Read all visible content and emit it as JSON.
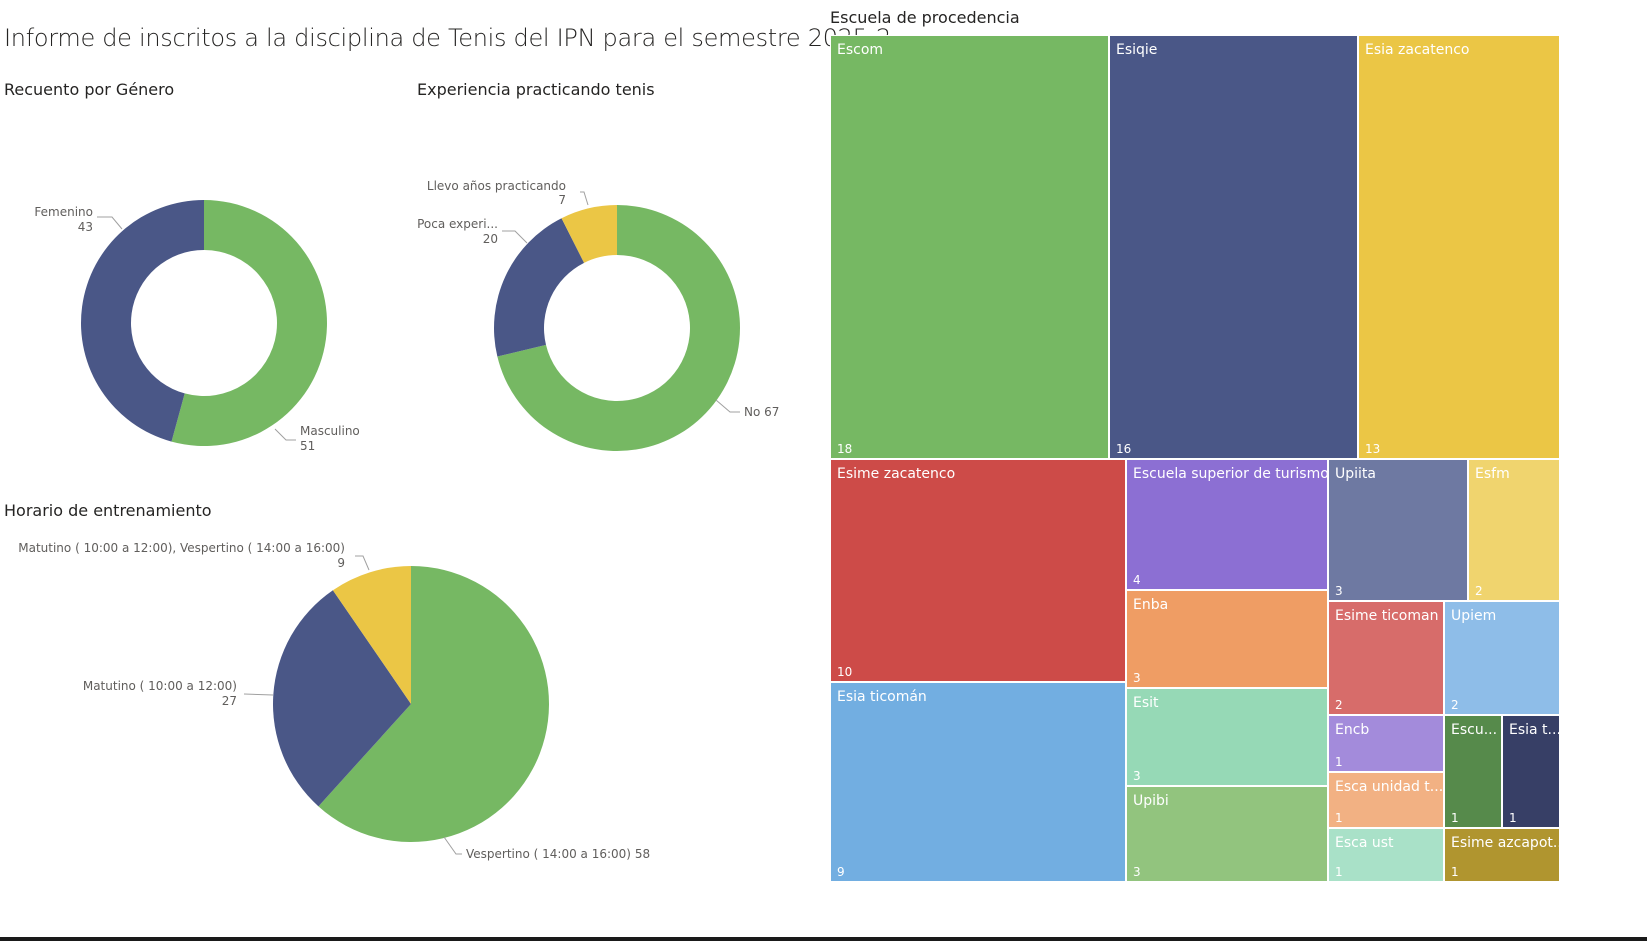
{
  "report": {
    "title": "Informe de inscritos a la disciplina de Tenis del IPN para el semestre 2025-2"
  },
  "colors": {
    "green": "#76B863",
    "navy": "#4A5787",
    "yellow": "#EBC645"
  },
  "chart_data": [
    {
      "id": "genero",
      "type": "pie",
      "variant": "donut",
      "title": "Recuento por Género",
      "slices": [
        {
          "label": "Masculino",
          "value": 51,
          "color": "#76B863"
        },
        {
          "label": "Femenino",
          "value": 43,
          "color": "#4A5787"
        }
      ]
    },
    {
      "id": "experiencia",
      "type": "pie",
      "variant": "donut",
      "title": "Experiencia practicando tenis",
      "slices": [
        {
          "label": "No",
          "value": 67,
          "color": "#76B863"
        },
        {
          "label": "Poca experi...",
          "value": 20,
          "color": "#4A5787"
        },
        {
          "label": "Llevo años practicando",
          "value": 7,
          "color": "#EBC645"
        }
      ]
    },
    {
      "id": "horario",
      "type": "pie",
      "variant": "pie",
      "title": "Horario de entrenamiento",
      "slices": [
        {
          "label": "Vespertino ( 14:00 a 16:00)",
          "value": 58,
          "color": "#76B863"
        },
        {
          "label": "Matutino ( 10:00 a 12:00)",
          "value": 27,
          "color": "#4A5787"
        },
        {
          "label": "Matutino ( 10:00 a 12:00), Vespertino ( 14:00 a 16:00)",
          "value": 9,
          "color": "#EBC645"
        }
      ]
    },
    {
      "id": "escuela",
      "type": "treemap",
      "title": "Escuela de procedencia",
      "items": [
        {
          "label": "Escom",
          "value": 18,
          "color": "#76B863"
        },
        {
          "label": "Esiqie",
          "value": 16,
          "color": "#4A5787"
        },
        {
          "label": "Esia zacatenco",
          "value": 13,
          "color": "#EBC645"
        },
        {
          "label": "Esime zacatenco",
          "value": 10,
          "color": "#CD4B48"
        },
        {
          "label": "Esia ticomán",
          "value": 9,
          "color": "#72AEE1"
        },
        {
          "label": "Escuela superior de turismo",
          "value": 4,
          "color": "#8C6FD3"
        },
        {
          "label": "Enba",
          "value": 3,
          "color": "#EF9D64"
        },
        {
          "label": "Esit",
          "value": 3,
          "color": "#96D9B6"
        },
        {
          "label": "Upibi",
          "value": 3,
          "color": "#92C47E"
        },
        {
          "label": "Upiita",
          "value": 3,
          "color": "#6E79A2"
        },
        {
          "label": "Esfm",
          "value": 2,
          "color": "#F0D46E"
        },
        {
          "label": "Esime ticoman",
          "value": 2,
          "color": "#D76C6A"
        },
        {
          "label": "Upiem",
          "value": 2,
          "color": "#8EBDE8"
        },
        {
          "label": "Encb",
          "value": 1,
          "color": "#A38BDB"
        },
        {
          "label": "Escu...",
          "value": 1,
          "color": "#568A4B"
        },
        {
          "label": "Esia t...",
          "value": 1,
          "color": "#373F66"
        },
        {
          "label": "Esca unidad t...",
          "value": 1,
          "color": "#F2B183"
        },
        {
          "label": "Esca ust",
          "value": 1,
          "color": "#A9E1C8"
        },
        {
          "label": "Esime azcapot...",
          "value": 1,
          "color": "#B0952F"
        }
      ]
    }
  ]
}
